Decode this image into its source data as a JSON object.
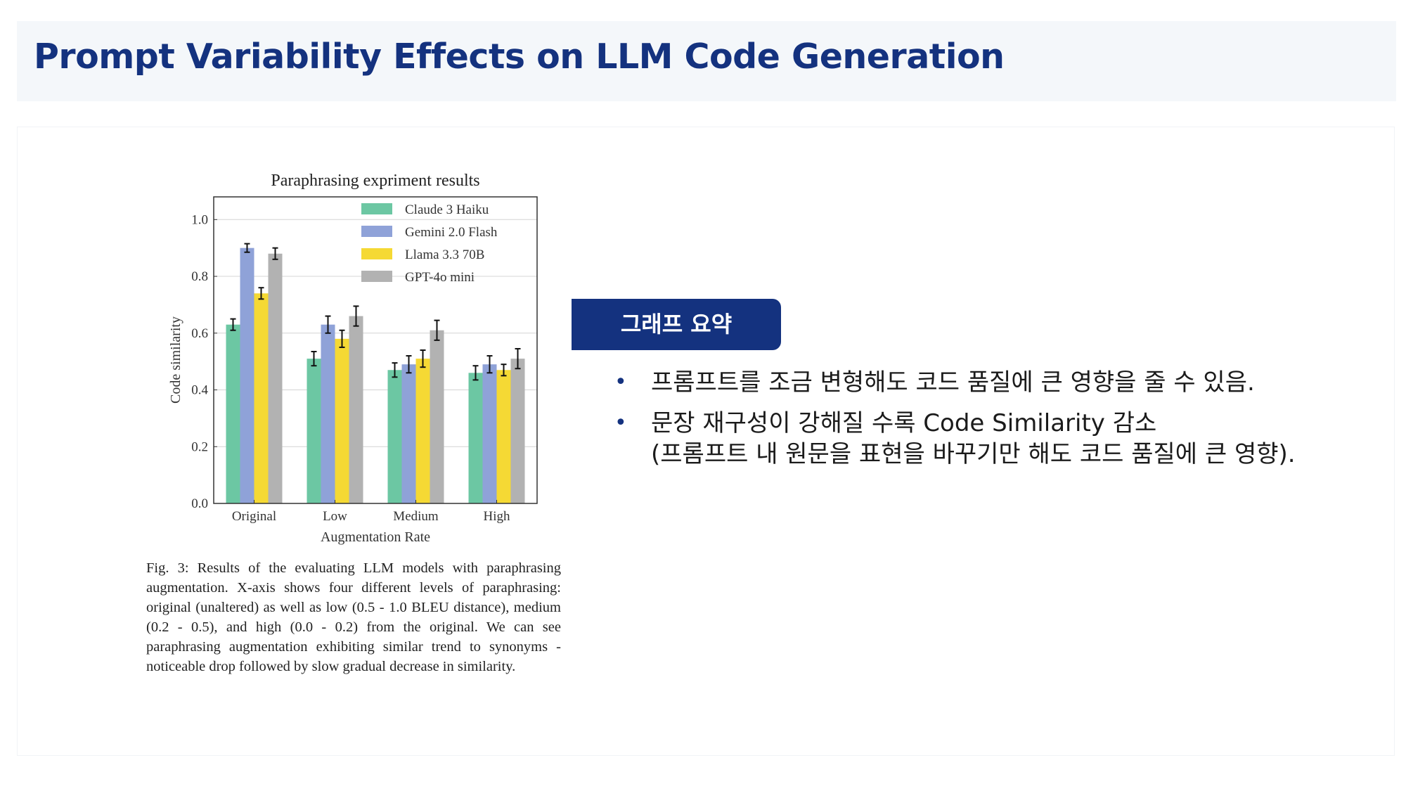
{
  "header": {
    "title": "Prompt Variability Effects on LLM Code Generation"
  },
  "summary": {
    "label": "그래프 요약",
    "bullets": [
      {
        "lines": [
          "프롬프트를 조금 변형해도 코드 품질에 큰 영향을 줄 수 있음."
        ]
      },
      {
        "lines": [
          "문장 재구성이 강해질 수록 Code Similarity 감소",
          "(프롬프트 내 원문을 표현을 바꾸기만 해도 코드 품질에 큰 영향)."
        ]
      }
    ]
  },
  "figure": {
    "caption": "Fig. 3: Results of the evaluating LLM models with paraphrasing augmentation. X-axis shows four different levels of paraphrasing: original (unaltered) as well as low (0.5 - 1.0 BLEU distance), medium (0.2 - 0.5), and high (0.0 - 0.2) from the original. We can see paraphrasing augmentation exhibiting similar trend to synonyms - noticeable drop followed by slow gradual decrease in similarity."
  },
  "chart_data": {
    "type": "bar",
    "title": "Paraphrasing expriment results",
    "xlabel": "Augmentation Rate",
    "ylabel": "Code similarity",
    "categories": [
      "Original",
      "Low",
      "Medium",
      "High"
    ],
    "ylim": [
      0,
      1.08
    ],
    "yticks": [
      "0.0",
      "0.2",
      "0.4",
      "0.6",
      "0.8",
      "1.0"
    ],
    "grid": true,
    "legend_position": "top-right",
    "error_bars": true,
    "series": [
      {
        "name": "Claude 3 Haiku",
        "color": "#6cc7a3",
        "values": [
          0.63,
          0.51,
          0.47,
          0.46
        ],
        "errors": [
          0.02,
          0.025,
          0.025,
          0.025
        ]
      },
      {
        "name": "Gemini 2.0 Flash",
        "color": "#8fa2d8",
        "values": [
          0.9,
          0.63,
          0.49,
          0.49
        ],
        "errors": [
          0.015,
          0.03,
          0.03,
          0.03
        ]
      },
      {
        "name": "Llama 3.3 70B",
        "color": "#f5d934",
        "values": [
          0.74,
          0.58,
          0.51,
          0.47
        ],
        "errors": [
          0.02,
          0.03,
          0.03,
          0.02
        ]
      },
      {
        "name": "GPT-4o mini",
        "color": "#b2b2b2",
        "values": [
          0.88,
          0.66,
          0.61,
          0.51
        ],
        "errors": [
          0.02,
          0.035,
          0.035,
          0.035
        ]
      }
    ]
  }
}
